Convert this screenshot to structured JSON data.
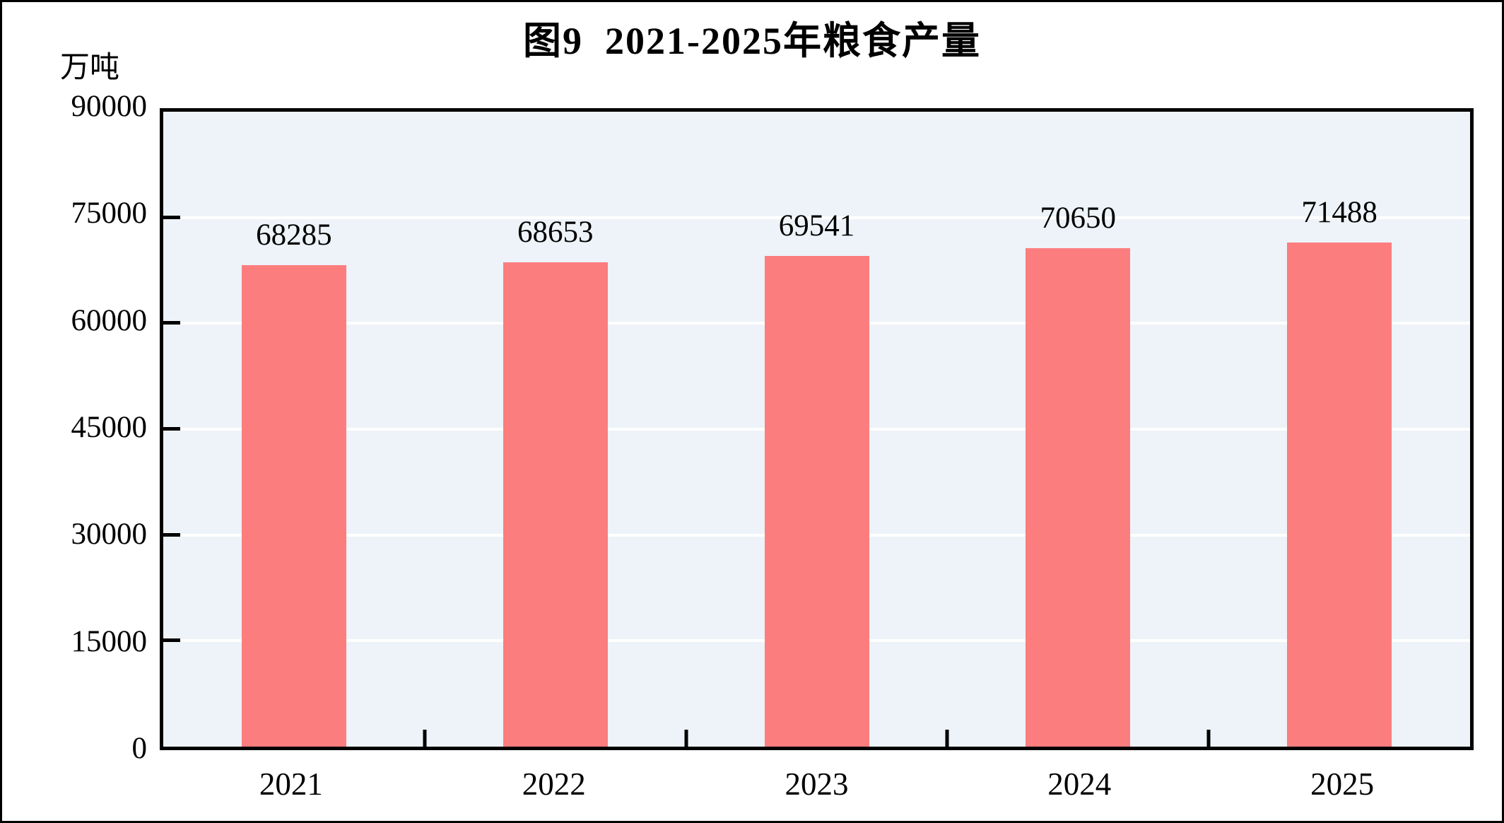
{
  "figure": {
    "frame_color": "#000000",
    "background": "#ffffff"
  },
  "chart_data": {
    "type": "bar",
    "title": "图9  2021-2025年粮食产量",
    "unit_label": "万吨",
    "categories": [
      "2021",
      "2022",
      "2023",
      "2024",
      "2025"
    ],
    "values": [
      68285,
      68653,
      69541,
      70650,
      71488
    ],
    "value_labels": [
      "68285",
      "68653",
      "69541",
      "70650",
      "71488"
    ],
    "ylim": [
      0,
      90000
    ],
    "yticks": [
      0,
      15000,
      30000,
      45000,
      60000,
      75000,
      90000
    ],
    "grid": "horizontal",
    "legend_position": "none",
    "bar_color": "#fc7d7e",
    "plot_background": "#edf3f8",
    "gridline_color": "#ffffff",
    "axis_color": "#000000",
    "text_color": "#000000"
  }
}
